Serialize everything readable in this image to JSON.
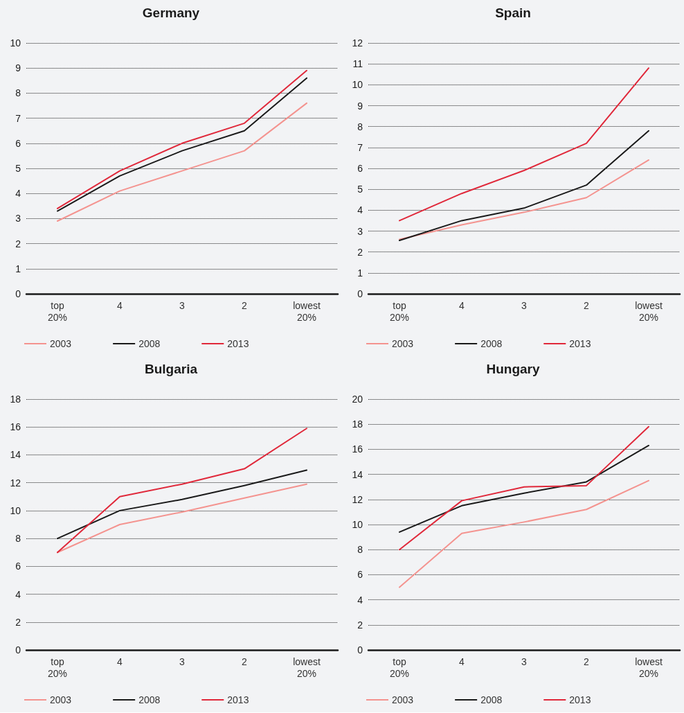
{
  "chart_data": [
    {
      "type": "line",
      "title": "Germany",
      "categories": [
        "top\n20%",
        "4",
        "3",
        "2",
        "lowest\n20%"
      ],
      "ylim": [
        0,
        10
      ],
      "yticks": [
        0,
        1,
        2,
        3,
        4,
        5,
        6,
        7,
        8,
        9,
        10
      ],
      "grid": "y",
      "legend": "bottom left",
      "marker": "none",
      "line_style": "solid",
      "series": [
        {
          "name": "2003",
          "color": "#f4938f",
          "values": [
            2.9,
            4.1,
            4.9,
            5.7,
            7.6
          ]
        },
        {
          "name": "2008",
          "color": "#1a1a1a",
          "values": [
            3.3,
            4.7,
            5.7,
            6.5,
            8.6
          ]
        },
        {
          "name": "2013",
          "color": "#e0283a",
          "values": [
            3.4,
            4.9,
            6.0,
            6.8,
            8.9
          ]
        }
      ]
    },
    {
      "type": "line",
      "title": "Spain",
      "categories": [
        "top\n20%",
        "4",
        "3",
        "2",
        "lowest\n20%"
      ],
      "ylim": [
        0,
        12
      ],
      "yticks": [
        0,
        1,
        2,
        3,
        4,
        5,
        6,
        7,
        8,
        9,
        10,
        11,
        12
      ],
      "grid": "y",
      "legend": "bottom left",
      "marker": "none",
      "line_style": "solid",
      "series": [
        {
          "name": "2003",
          "color": "#f4938f",
          "values": [
            2.6,
            3.3,
            3.9,
            4.6,
            6.4
          ]
        },
        {
          "name": "2008",
          "color": "#1a1a1a",
          "values": [
            2.55,
            3.5,
            4.1,
            5.2,
            7.8
          ]
        },
        {
          "name": "2013",
          "color": "#e0283a",
          "values": [
            3.5,
            4.8,
            5.9,
            7.2,
            10.8
          ]
        }
      ]
    },
    {
      "type": "line",
      "title": "Bulgaria",
      "categories": [
        "top\n20%",
        "4",
        "3",
        "2",
        "lowest\n20%"
      ],
      "ylim": [
        0,
        18
      ],
      "yticks": [
        0,
        2,
        4,
        6,
        8,
        10,
        12,
        14,
        16,
        18
      ],
      "grid": "y",
      "legend": "bottom left",
      "marker": "none",
      "line_style": "solid",
      "series": [
        {
          "name": "2003",
          "color": "#f4938f",
          "values": [
            7.0,
            9.0,
            9.9,
            10.9,
            11.9
          ]
        },
        {
          "name": "2008",
          "color": "#1a1a1a",
          "values": [
            8.0,
            10.0,
            10.8,
            11.8,
            12.9
          ]
        },
        {
          "name": "2013",
          "color": "#e0283a",
          "values": [
            7.0,
            11.0,
            11.9,
            13.0,
            15.9
          ]
        }
      ]
    },
    {
      "type": "line",
      "title": "Hungary",
      "categories": [
        "top\n20%",
        "4",
        "3",
        "2",
        "lowest\n20%"
      ],
      "ylim": [
        0,
        20
      ],
      "yticks": [
        0,
        2,
        4,
        6,
        8,
        10,
        12,
        14,
        16,
        18,
        20
      ],
      "grid": "y",
      "legend": "bottom left",
      "marker": "none",
      "line_style": "solid",
      "series": [
        {
          "name": "2003",
          "color": "#f4938f",
          "values": [
            5.0,
            9.3,
            10.2,
            11.2,
            13.5
          ]
        },
        {
          "name": "2008",
          "color": "#1a1a1a",
          "values": [
            9.4,
            11.5,
            12.5,
            13.4,
            16.3
          ]
        },
        {
          "name": "2013",
          "color": "#e0283a",
          "values": [
            8.0,
            11.9,
            13.0,
            13.1,
            17.8
          ]
        }
      ]
    }
  ]
}
